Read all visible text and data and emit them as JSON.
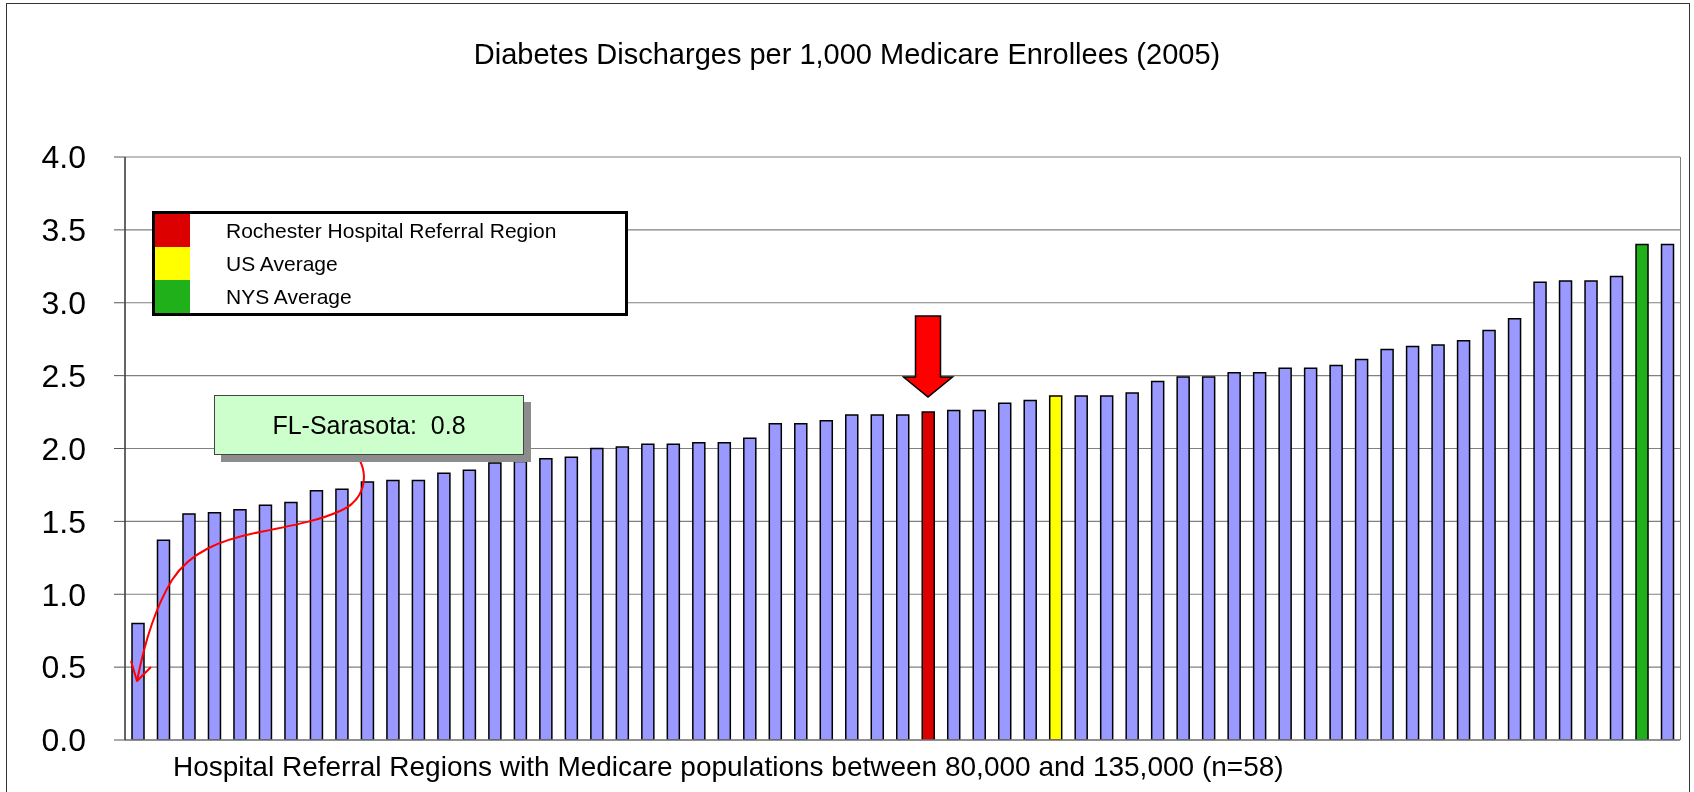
{
  "chart_data": {
    "type": "bar",
    "title": "Diabetes Discharges per 1,000 Medicare Enrollees (2005)",
    "xlabel": "Hospital Referral Regions with Medicare populations between 80,000 and 135,000 (n=58)",
    "categories": [
      null,
      null,
      null,
      null,
      null,
      null,
      null,
      null,
      null,
      null,
      null,
      null,
      null,
      null,
      null,
      null,
      null,
      null,
      null,
      null,
      null,
      null,
      null,
      null,
      null,
      null,
      null,
      null,
      null,
      null,
      null,
      null,
      null,
      null,
      null,
      null,
      null,
      null,
      null,
      null,
      null,
      null,
      null,
      null,
      null,
      null,
      null,
      null,
      null,
      null,
      null,
      null,
      null,
      null,
      null,
      null,
      null,
      null,
      null,
      null,
      null
    ],
    "series": [
      {
        "color": "#9999ff",
        "values": [
          0.8,
          1.37,
          1.55,
          1.56,
          1.58,
          1.61,
          1.63,
          1.71,
          1.72,
          1.77,
          1.78,
          1.78,
          1.83,
          1.85,
          1.9,
          1.91,
          1.93,
          1.94,
          2.0,
          2.01,
          2.03,
          2.03,
          2.04,
          2.04,
          2.07,
          2.17,
          2.17,
          2.19,
          2.23,
          2.23,
          2.23,
          null,
          2.26,
          2.26,
          2.31,
          2.33,
          null,
          2.36,
          2.36,
          2.38,
          2.46,
          2.49,
          2.49,
          2.52,
          2.52,
          2.55,
          2.55,
          2.57,
          2.61,
          2.68,
          2.7,
          2.71,
          2.74,
          2.81,
          2.89,
          3.14,
          3.15,
          3.15,
          3.18,
          null,
          3.4
        ]
      },
      {
        "name": "Rochester Hospital Referral Region",
        "color": "#dd0000",
        "values": [
          null,
          null,
          null,
          null,
          null,
          null,
          null,
          null,
          null,
          null,
          null,
          null,
          null,
          null,
          null,
          null,
          null,
          null,
          null,
          null,
          null,
          null,
          null,
          null,
          null,
          null,
          null,
          null,
          null,
          null,
          null,
          2.25,
          null,
          null,
          null,
          null,
          null,
          null,
          null,
          null,
          null,
          null,
          null,
          null,
          null,
          null,
          null,
          null,
          null,
          null,
          null,
          null,
          null,
          null,
          null,
          null,
          null,
          null,
          null,
          null,
          null
        ]
      },
      {
        "name": "US Average",
        "color": "#ffff00",
        "values": [
          null,
          null,
          null,
          null,
          null,
          null,
          null,
          null,
          null,
          null,
          null,
          null,
          null,
          null,
          null,
          null,
          null,
          null,
          null,
          null,
          null,
          null,
          null,
          null,
          null,
          null,
          null,
          null,
          null,
          null,
          null,
          null,
          null,
          null,
          null,
          null,
          2.36,
          null,
          null,
          null,
          null,
          null,
          null,
          null,
          null,
          null,
          null,
          null,
          null,
          null,
          null,
          null,
          null,
          null,
          null,
          null,
          null,
          null,
          null,
          null,
          null
        ]
      },
      {
        "name": "NYS Average",
        "color": "#20b01a",
        "values": [
          null,
          null,
          null,
          null,
          null,
          null,
          null,
          null,
          null,
          null,
          null,
          null,
          null,
          null,
          null,
          null,
          null,
          null,
          null,
          null,
          null,
          null,
          null,
          null,
          null,
          null,
          null,
          null,
          null,
          null,
          null,
          null,
          null,
          null,
          null,
          null,
          null,
          null,
          null,
          null,
          null,
          null,
          null,
          null,
          null,
          null,
          null,
          null,
          null,
          null,
          null,
          null,
          null,
          null,
          null,
          null,
          null,
          null,
          null,
          3.4,
          null
        ]
      }
    ],
    "stacked": true,
    "ylim": [
      0,
      4
    ],
    "yticks": [
      {
        "value": 0,
        "label": "0.0"
      },
      0.5,
      {
        "value": 1,
        "label": "1.0"
      },
      1.5,
      {
        "value": 2,
        "label": "2.0"
      },
      2.5,
      {
        "value": 3,
        "label": "3.0"
      },
      3.5,
      {
        "value": 4,
        "label": "4.0"
      }
    ],
    "grid": "y",
    "legend": "top left",
    "annotations": [
      "FL-Sarasota:  0.8"
    ]
  }
}
